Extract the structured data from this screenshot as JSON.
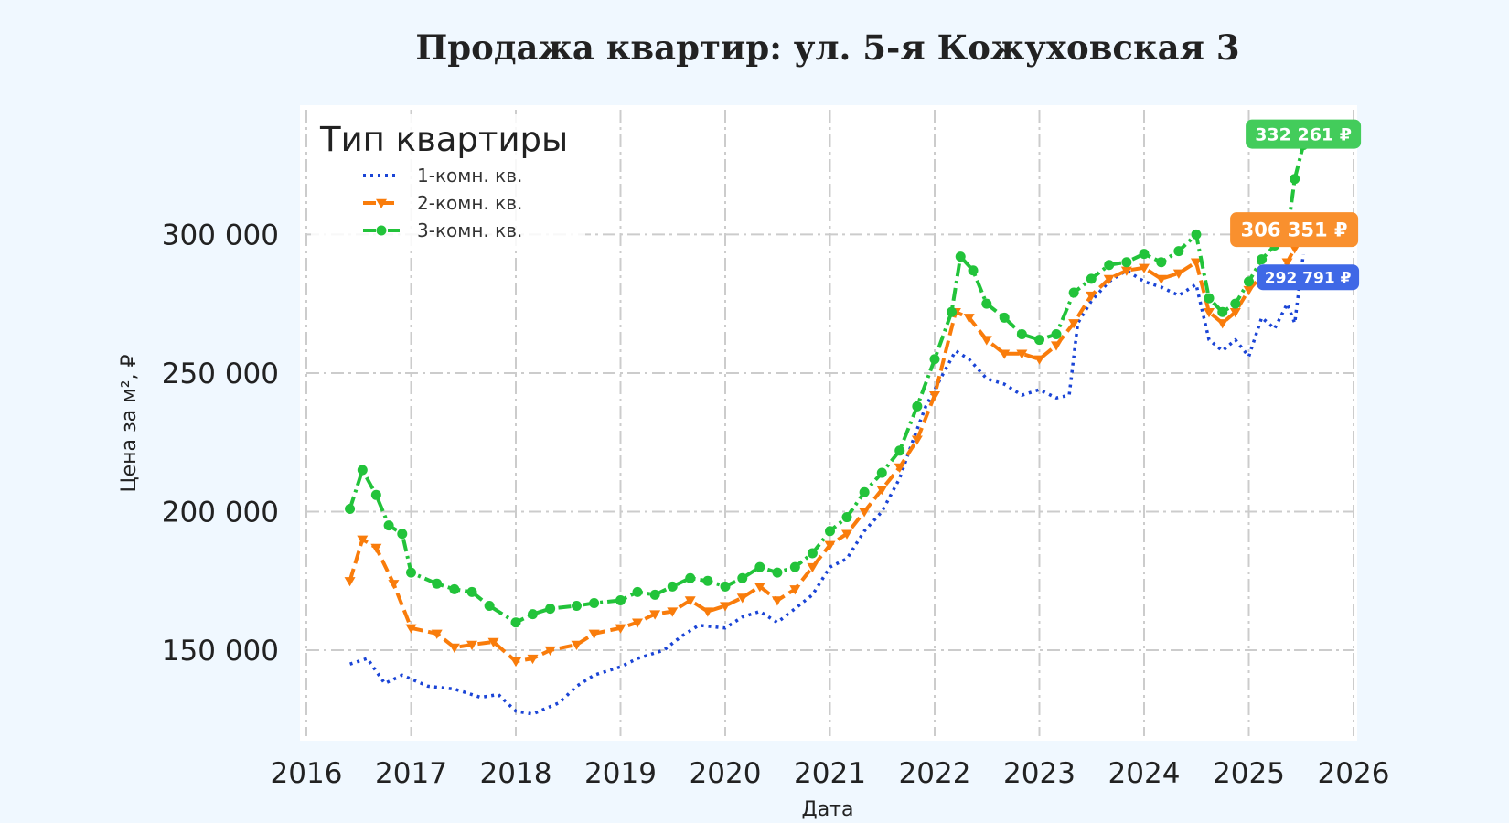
{
  "colors": {
    "page_background": "#f0f8ff",
    "plot_background": "#ffffff",
    "grid": "#cccccc",
    "series_1": "#1a44d6",
    "series_2": "#f97c0b",
    "series_3": "#22c33a",
    "badge_1": "#3f68e6",
    "badge_2": "#f9902e",
    "badge_3": "#43cc5b"
  },
  "chart_data": {
    "type": "line",
    "title": "Продажа квартир: ул. 5-я Кожуховская 3",
    "xlabel": "Дата",
    "ylabel": "Цена за м², ₽",
    "xlim": [
      "2016-01-01",
      "2026-01-01"
    ],
    "ylim": [
      119000,
      345000
    ],
    "x_ticks": [
      "2016",
      "2017",
      "2018",
      "2019",
      "2020",
      "2021",
      "2022",
      "2023",
      "2024",
      "2025",
      "2026"
    ],
    "y_ticks": [
      {
        "value": 150000,
        "label": "150 000"
      },
      {
        "value": 200000,
        "label": "200 000"
      },
      {
        "value": 250000,
        "label": "250 000"
      },
      {
        "value": 300000,
        "label": "300 000"
      }
    ],
    "grid": true,
    "legend": {
      "title": "Тип квартиры",
      "position": "top-left"
    },
    "series": [
      {
        "name": "1-комн. кв.",
        "style": "dotted",
        "marker": "none",
        "points": [
          [
            "2016-06-01",
            145000
          ],
          [
            "2016-08-01",
            147000
          ],
          [
            "2016-10-01",
            138000
          ],
          [
            "2016-12-01",
            141000
          ],
          [
            "2017-03-01",
            137000
          ],
          [
            "2017-06-01",
            136000
          ],
          [
            "2017-09-01",
            133000
          ],
          [
            "2017-11-01",
            134000
          ],
          [
            "2018-01-01",
            128000
          ],
          [
            "2018-03-01",
            127000
          ],
          [
            "2018-06-01",
            131000
          ],
          [
            "2018-08-01",
            137000
          ],
          [
            "2018-10-01",
            141000
          ],
          [
            "2019-01-01",
            144000
          ],
          [
            "2019-03-01",
            147000
          ],
          [
            "2019-06-01",
            150000
          ],
          [
            "2019-08-01",
            155000
          ],
          [
            "2019-10-01",
            159000
          ],
          [
            "2020-01-01",
            158000
          ],
          [
            "2020-03-01",
            162000
          ],
          [
            "2020-05-01",
            164000
          ],
          [
            "2020-07-01",
            160000
          ],
          [
            "2020-09-01",
            165000
          ],
          [
            "2020-11-01",
            170000
          ],
          [
            "2021-01-01",
            180000
          ],
          [
            "2021-03-01",
            183000
          ],
          [
            "2021-05-01",
            193000
          ],
          [
            "2021-07-01",
            200000
          ],
          [
            "2021-09-01",
            212000
          ],
          [
            "2021-10-15",
            225000
          ],
          [
            "2021-12-01",
            238000
          ],
          [
            "2022-02-01",
            250000
          ],
          [
            "2022-03-15",
            258000
          ],
          [
            "2022-05-01",
            255000
          ],
          [
            "2022-07-01",
            248000
          ],
          [
            "2022-09-01",
            246000
          ],
          [
            "2022-11-01",
            242000
          ],
          [
            "2023-01-01",
            244000
          ],
          [
            "2023-03-01",
            241000
          ],
          [
            "2023-04-15",
            242000
          ],
          [
            "2023-05-15",
            268000
          ],
          [
            "2023-07-01",
            276000
          ],
          [
            "2023-09-01",
            283000
          ],
          [
            "2023-11-01",
            287000
          ],
          [
            "2024-01-01",
            283000
          ],
          [
            "2024-03-01",
            281000
          ],
          [
            "2024-05-01",
            278000
          ],
          [
            "2024-07-01",
            282000
          ],
          [
            "2024-08-15",
            262000
          ],
          [
            "2024-10-01",
            258000
          ],
          [
            "2024-11-15",
            262000
          ],
          [
            "2025-01-01",
            256000
          ],
          [
            "2025-02-15",
            270000
          ],
          [
            "2025-04-01",
            266000
          ],
          [
            "2025-05-15",
            275000
          ],
          [
            "2025-06-10",
            268000
          ],
          [
            "2025-07-10",
            292791
          ]
        ]
      },
      {
        "name": "2-комн. кв.",
        "style": "dashed",
        "marker": "triangle-down",
        "points": [
          [
            "2016-06-01",
            175000
          ],
          [
            "2016-07-15",
            190000
          ],
          [
            "2016-09-01",
            187000
          ],
          [
            "2016-11-01",
            174000
          ],
          [
            "2017-01-01",
            158000
          ],
          [
            "2017-04-01",
            156000
          ],
          [
            "2017-06-01",
            151000
          ],
          [
            "2017-08-01",
            152000
          ],
          [
            "2017-10-15",
            153000
          ],
          [
            "2018-01-01",
            146000
          ],
          [
            "2018-03-01",
            147000
          ],
          [
            "2018-05-01",
            150000
          ],
          [
            "2018-08-01",
            152000
          ],
          [
            "2018-10-01",
            156000
          ],
          [
            "2019-01-01",
            158000
          ],
          [
            "2019-03-01",
            160000
          ],
          [
            "2019-05-01",
            163000
          ],
          [
            "2019-07-01",
            164000
          ],
          [
            "2019-09-01",
            168000
          ],
          [
            "2019-11-01",
            164000
          ],
          [
            "2020-01-01",
            166000
          ],
          [
            "2020-03-01",
            169000
          ],
          [
            "2020-05-01",
            173000
          ],
          [
            "2020-07-01",
            168000
          ],
          [
            "2020-09-01",
            172000
          ],
          [
            "2020-11-01",
            180000
          ],
          [
            "2021-01-01",
            188000
          ],
          [
            "2021-03-01",
            192000
          ],
          [
            "2021-05-01",
            200000
          ],
          [
            "2021-07-01",
            208000
          ],
          [
            "2021-09-01",
            216000
          ],
          [
            "2021-11-01",
            226000
          ],
          [
            "2022-01-01",
            242000
          ],
          [
            "2022-03-15",
            272000
          ],
          [
            "2022-05-01",
            270000
          ],
          [
            "2022-07-01",
            262000
          ],
          [
            "2022-09-01",
            257000
          ],
          [
            "2022-11-01",
            257000
          ],
          [
            "2023-01-01",
            255000
          ],
          [
            "2023-03-01",
            260000
          ],
          [
            "2023-05-01",
            268000
          ],
          [
            "2023-07-01",
            278000
          ],
          [
            "2023-09-01",
            284000
          ],
          [
            "2023-11-01",
            287000
          ],
          [
            "2024-01-01",
            288000
          ],
          [
            "2024-03-01",
            284000
          ],
          [
            "2024-05-01",
            286000
          ],
          [
            "2024-07-01",
            290000
          ],
          [
            "2024-08-15",
            272000
          ],
          [
            "2024-10-01",
            268000
          ],
          [
            "2024-11-15",
            272000
          ],
          [
            "2025-01-01",
            280000
          ],
          [
            "2025-02-15",
            285000
          ],
          [
            "2025-04-01",
            283000
          ],
          [
            "2025-05-15",
            290000
          ],
          [
            "2025-06-10",
            295000
          ],
          [
            "2025-07-10",
            306351
          ]
        ]
      },
      {
        "name": "3-комн. кв.",
        "style": "dash-dot",
        "marker": "circle",
        "points": [
          [
            "2016-06-01",
            201000
          ],
          [
            "2016-07-15",
            215000
          ],
          [
            "2016-09-01",
            206000
          ],
          [
            "2016-10-15",
            195000
          ],
          [
            "2016-12-01",
            192000
          ],
          [
            "2017-01-01",
            178000
          ],
          [
            "2017-04-01",
            174000
          ],
          [
            "2017-06-01",
            172000
          ],
          [
            "2017-08-01",
            171000
          ],
          [
            "2017-10-01",
            166000
          ],
          [
            "2018-01-01",
            160000
          ],
          [
            "2018-03-01",
            163000
          ],
          [
            "2018-05-01",
            165000
          ],
          [
            "2018-08-01",
            166000
          ],
          [
            "2018-10-01",
            167000
          ],
          [
            "2019-01-01",
            168000
          ],
          [
            "2019-03-01",
            171000
          ],
          [
            "2019-05-01",
            170000
          ],
          [
            "2019-07-01",
            173000
          ],
          [
            "2019-09-01",
            176000
          ],
          [
            "2019-11-01",
            175000
          ],
          [
            "2020-01-01",
            173000
          ],
          [
            "2020-03-01",
            176000
          ],
          [
            "2020-05-01",
            180000
          ],
          [
            "2020-07-01",
            178000
          ],
          [
            "2020-09-01",
            180000
          ],
          [
            "2020-11-01",
            185000
          ],
          [
            "2021-01-01",
            193000
          ],
          [
            "2021-03-01",
            198000
          ],
          [
            "2021-05-01",
            207000
          ],
          [
            "2021-07-01",
            214000
          ],
          [
            "2021-09-01",
            222000
          ],
          [
            "2021-11-01",
            238000
          ],
          [
            "2022-01-01",
            255000
          ],
          [
            "2022-03-01",
            272000
          ],
          [
            "2022-04-01",
            292000
          ],
          [
            "2022-05-15",
            287000
          ],
          [
            "2022-07-01",
            275000
          ],
          [
            "2022-09-01",
            270000
          ],
          [
            "2022-11-01",
            264000
          ],
          [
            "2023-01-01",
            262000
          ],
          [
            "2023-03-01",
            264000
          ],
          [
            "2023-05-01",
            279000
          ],
          [
            "2023-07-01",
            284000
          ],
          [
            "2023-09-01",
            289000
          ],
          [
            "2023-11-01",
            290000
          ],
          [
            "2024-01-01",
            293000
          ],
          [
            "2024-03-01",
            290000
          ],
          [
            "2024-05-01",
            294000
          ],
          [
            "2024-07-01",
            300000
          ],
          [
            "2024-08-15",
            277000
          ],
          [
            "2024-10-01",
            272000
          ],
          [
            "2024-11-15",
            275000
          ],
          [
            "2025-01-01",
            283000
          ],
          [
            "2025-02-15",
            291000
          ],
          [
            "2025-04-01",
            296000
          ],
          [
            "2025-05-15",
            300000
          ],
          [
            "2025-06-10",
            320000
          ],
          [
            "2025-07-10",
            332261
          ]
        ]
      }
    ],
    "annotations": [
      {
        "series": "3-комн. кв.",
        "date": "2025-07-10",
        "value": 332261,
        "text": "332 261 ₽",
        "color": "#43cc5b"
      },
      {
        "series": "2-комн. кв.",
        "date": "2025-07-10",
        "value": 306351,
        "text": "306 351 ₽",
        "color": "#f9902e"
      },
      {
        "series": "1-комн. кв.",
        "date": "2025-07-10",
        "value": 292791,
        "text": "292 791 ₽",
        "color": "#3f68e6"
      }
    ]
  }
}
